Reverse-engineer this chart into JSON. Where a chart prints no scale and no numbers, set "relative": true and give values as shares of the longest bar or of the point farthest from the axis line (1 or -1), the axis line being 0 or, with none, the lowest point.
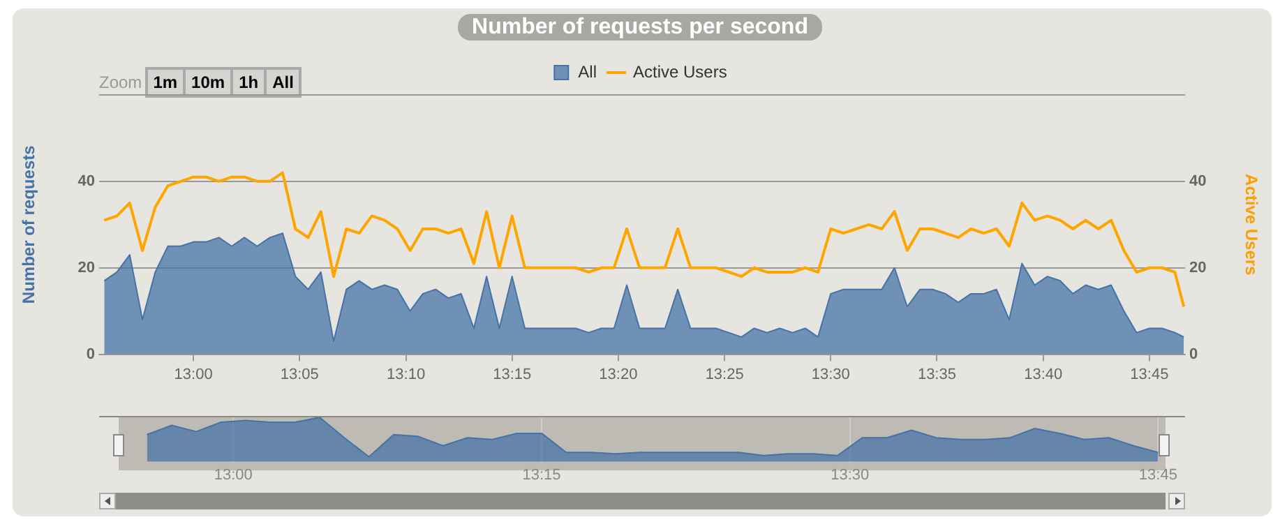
{
  "chart_data": [
    {
      "type": "area",
      "title": "Number of requests per second",
      "ylabel": "Number of requests",
      "y2label": "Active Users",
      "annotations": [
        "Zoom",
        "1m",
        "10m",
        "1h",
        "All"
      ],
      "x": [
        12.93,
        12.94,
        12.95,
        12.96,
        12.97,
        12.98,
        12.99,
        13.0,
        13.01,
        13.02,
        13.03,
        13.04,
        13.05,
        13.06,
        13.07,
        13.08,
        13.09,
        13.1,
        13.11,
        13.12,
        13.13,
        13.14,
        13.15,
        13.16,
        13.17,
        13.18,
        13.19,
        13.2,
        13.21,
        13.22,
        13.23,
        13.24,
        13.25,
        13.26,
        13.27,
        13.28,
        13.29,
        13.3,
        13.31,
        13.32,
        13.33,
        13.34,
        13.35,
        13.36,
        13.37,
        13.38,
        13.39,
        13.4,
        13.41,
        13.42,
        13.43,
        13.44,
        13.45,
        13.46,
        13.47,
        13.48,
        13.49,
        13.5,
        13.51,
        13.52,
        13.53,
        13.54,
        13.55,
        13.56,
        13.57,
        13.58,
        13.59,
        13.6,
        13.61,
        13.62,
        13.63,
        13.64,
        13.65,
        13.66,
        13.67,
        13.68,
        13.69,
        13.7,
        13.71,
        13.72,
        13.73,
        13.74,
        13.75,
        13.76,
        13.77,
        13.777
      ],
      "series": [
        {
          "name": "All",
          "type": "area",
          "color": "#4572a7",
          "values": [
            17,
            19,
            23,
            8,
            19,
            25,
            25,
            26,
            26,
            27,
            25,
            27,
            25,
            27,
            28,
            18,
            15,
            19,
            3,
            15,
            17,
            15,
            16,
            15,
            10,
            14,
            15,
            13,
            14,
            6,
            18,
            6,
            18,
            6,
            6,
            6,
            6,
            6,
            5,
            6,
            6,
            16,
            6,
            6,
            6,
            15,
            6,
            6,
            6,
            5,
            4,
            6,
            5,
            6,
            5,
            6,
            4,
            14,
            15,
            15,
            15,
            15,
            20,
            11,
            15,
            15,
            14,
            12,
            14,
            14,
            15,
            8,
            21,
            16,
            18,
            17,
            14,
            16,
            15,
            16,
            10,
            5,
            6,
            6,
            5,
            4
          ]
        },
        {
          "name": "Active Users",
          "type": "line",
          "axis": "y2",
          "color": "#ffa500",
          "values": [
            31,
            32,
            35,
            24,
            34,
            39,
            40,
            41,
            41,
            40,
            41,
            41,
            40,
            40,
            42,
            29,
            27,
            33,
            18,
            29,
            28,
            32,
            31,
            29,
            24,
            29,
            29,
            28,
            29,
            21,
            33,
            20,
            32,
            20,
            20,
            20,
            20,
            20,
            19,
            20,
            20,
            29,
            20,
            20,
            20,
            29,
            20,
            20,
            20,
            19,
            18,
            20,
            19,
            19,
            19,
            20,
            19,
            29,
            28,
            29,
            30,
            29,
            33,
            24,
            29,
            29,
            28,
            27,
            29,
            28,
            29,
            25,
            35,
            31,
            32,
            31,
            29,
            31,
            29,
            31,
            24,
            19,
            20,
            20,
            19,
            11
          ]
        }
      ],
      "xlim": [
        12.926,
        13.778
      ],
      "xticks": [
        {
          "value": 13,
          "label": "13:00"
        },
        {
          "value": 13.0833,
          "label": "13:05"
        },
        {
          "value": 13.1667,
          "label": "13:10"
        },
        {
          "value": 13.25,
          "label": "13:15"
        },
        {
          "value": 13.3333,
          "label": "13:20"
        },
        {
          "value": 13.4167,
          "label": "13:25"
        },
        {
          "value": 13.5,
          "label": "13:30"
        },
        {
          "value": 13.5833,
          "label": "13:35"
        },
        {
          "value": 13.6667,
          "label": "13:40"
        },
        {
          "value": 13.75,
          "label": "13:45"
        }
      ],
      "ylim": [
        0,
        60
      ],
      "yticks": [
        0,
        20,
        40,
        {
          "value": 60,
          "label": null
        }
      ],
      "y2lim": [
        0,
        60
      ],
      "y2ticks": [
        0,
        20,
        40
      ],
      "grid": "y",
      "legend": "top",
      "marker": "none"
    },
    {
      "type": "area",
      "relative": true,
      "x": [
        12.93,
        12.95,
        12.97,
        12.99,
        13.01,
        13.03,
        13.05,
        13.07,
        13.09,
        13.11,
        13.13,
        13.15,
        13.17,
        13.19,
        13.21,
        13.23,
        13.25,
        13.27,
        13.29,
        13.31,
        13.33,
        13.35,
        13.37,
        13.39,
        13.41,
        13.43,
        13.45,
        13.47,
        13.49,
        13.51,
        13.53,
        13.55,
        13.57,
        13.59,
        13.61,
        13.63,
        13.65,
        13.67,
        13.69,
        13.71,
        13.73,
        13.75
      ],
      "series": [
        {
          "color": "#4572a7",
          "values": [
            0.61,
            0.82,
            0.68,
            0.89,
            0.93,
            0.89,
            0.89,
            1,
            0.54,
            0.11,
            0.61,
            0.57,
            0.36,
            0.54,
            0.5,
            0.64,
            0.64,
            0.21,
            0.21,
            0.18,
            0.21,
            0.21,
            0.21,
            0.21,
            0.21,
            0.14,
            0.18,
            0.18,
            0.14,
            0.54,
            0.54,
            0.71,
            0.54,
            0.5,
            0.5,
            0.54,
            0.75,
            0.64,
            0.5,
            0.54,
            0.36,
            0.21
          ]
        }
      ],
      "xlim": [
        12.907,
        13.756
      ],
      "xticks": [
        {
          "value": 13,
          "label": "13:00"
        },
        {
          "value": 13.25,
          "label": "13:15"
        },
        {
          "value": 13.5,
          "label": "13:30"
        },
        {
          "value": 13.75,
          "label": "13:45"
        }
      ],
      "grid": "x",
      "tick_labels": "x",
      "marker": "none"
    }
  ]
}
